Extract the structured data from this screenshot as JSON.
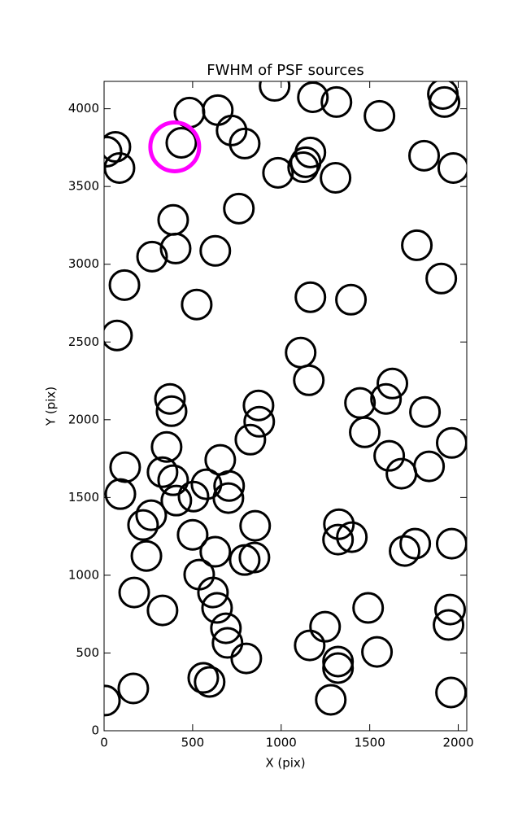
{
  "chart_data": {
    "type": "scatter",
    "title": "FWHM of PSF sources",
    "xlabel": "X (pix)",
    "ylabel": "Y (pix)",
    "xlim": [
      0,
      2048
    ],
    "ylim": [
      0,
      4176
    ],
    "xticks": [
      0,
      500,
      1000,
      1500,
      2000
    ],
    "yticks": [
      0,
      500,
      1000,
      1500,
      2000,
      2500,
      3000,
      3500,
      4000
    ],
    "color": "#000000",
    "x": [
      5,
      165,
      1280,
      560,
      596,
      1959,
      1321,
      1321,
      1161,
      803,
      697,
      1248,
      688,
      638,
      1491,
      1541,
      1945,
      1954,
      170,
      330,
      615,
      537,
      239,
      628,
      794,
      849,
      500,
      220,
      266,
      853,
      1326,
      1321,
      1399,
      1757,
      1697,
      1963,
      92,
      119,
      330,
      390,
      408,
      505,
      578,
      706,
      702,
      656,
      353,
      372,
      381,
      826,
      872,
      876,
      1472,
      1445,
      1592,
      1628,
      1610,
      1679,
      1812,
      1835,
      1963,
      1110,
      1156,
      73,
      523,
      115,
      1165,
      1394,
      1904,
      271,
      404,
      628,
      1766,
      390,
      761,
      14,
      64,
      87,
      436,
      482,
      642,
      720,
      794,
      982,
      1124,
      1138,
      1165,
      1307,
      963,
      1179,
      1312,
      1555,
      1807,
      1972,
      1913,
      1922
    ],
    "y": [
      194,
      272,
      199,
      340,
      314,
      246,
      445,
      403,
      549,
      465,
      565,
      669,
      659,
      790,
      790,
      507,
      680,
      779,
      889,
      774,
      889,
      1004,
      1124,
      1151,
      1098,
      1114,
      1260,
      1323,
      1386,
      1318,
      1328,
      1229,
      1245,
      1203,
      1156,
      1203,
      1522,
      1695,
      1663,
      1611,
      1480,
      1506,
      1585,
      1574,
      1496,
      1742,
      1825,
      2134,
      2055,
      1872,
      2092,
      1987,
      1919,
      2108,
      2134,
      2233,
      1768,
      1653,
      2050,
      1700,
      1851,
      2432,
      2254,
      2542,
      2741,
      2866,
      2788,
      2772,
      2908,
      3049,
      3101,
      3086,
      3122,
      3285,
      3358,
      3724,
      3755,
      3619,
      3781,
      3975,
      3991,
      3860,
      3776,
      3588,
      3624,
      3656,
      3719,
      3556,
      4147,
      4074,
      4043,
      3954,
      3698,
      3619,
      4095,
      4043
    ],
    "highlight": {
      "x": [
        399
      ],
      "y": [
        3755
      ],
      "color": "#ff00ff"
    }
  }
}
